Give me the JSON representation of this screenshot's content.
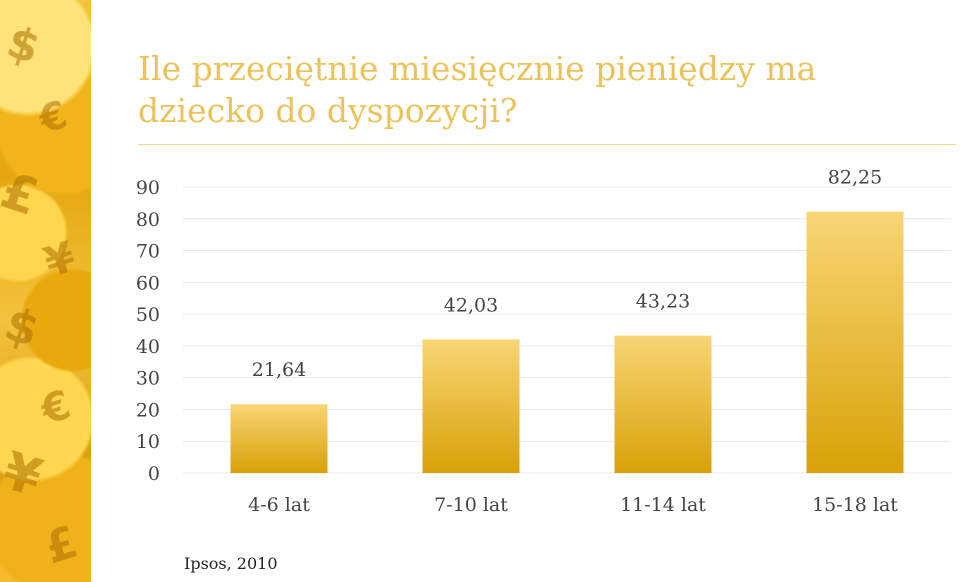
{
  "title": "Ile przeciętnie miesięcznie pieniędzy ma dziecko do dyspozycji?",
  "source": "Ipsos, 2010",
  "colors": {
    "title": "#ebc35c",
    "bar_top": "#f8d676",
    "bar_bottom": "#d8a106",
    "grid": "#e8e8e8",
    "text": "#444444"
  },
  "decor_glyphs": [
    "$",
    "€",
    "£",
    "¥",
    "$",
    "€",
    "¥",
    "£"
  ],
  "chart_data": {
    "type": "bar",
    "title": "",
    "xlabel": "",
    "ylabel": "",
    "categories": [
      "4-6 lat",
      "7-10 lat",
      "11-14 lat",
      "15-18 lat"
    ],
    "values": [
      21.64,
      42.03,
      43.23,
      82.25
    ],
    "value_labels": [
      "21,64",
      "42,03",
      "43,23",
      "82,25"
    ],
    "ylim": [
      0,
      90
    ],
    "yticks": [
      0,
      10,
      20,
      30,
      40,
      50,
      60,
      70,
      80,
      90
    ],
    "grid": true,
    "legend": "none"
  }
}
